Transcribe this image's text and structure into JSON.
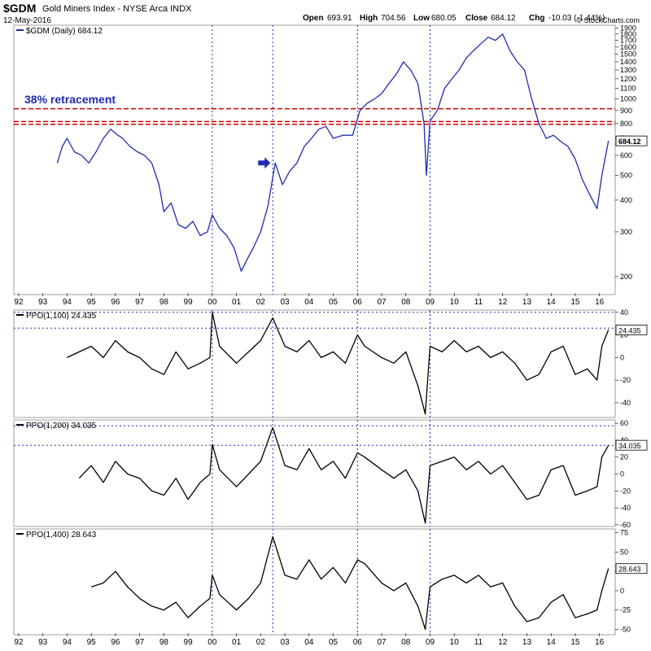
{
  "header": {
    "symbol": "$GDM",
    "name": "Gold Miners Index - NYSE Arca INDX",
    "date": "12-May-2016",
    "open_label": "Open",
    "open": "693.91",
    "high_label": "High",
    "high": "704.56",
    "low_label": "Low",
    "low": "680.05",
    "close_label": "Close",
    "close": "684.12",
    "chg_label": "Chg",
    "chg": "-10.03 (-1.44%)",
    "credit": "© StockCharts.com"
  },
  "colors": {
    "price": "#1f2bb0",
    "ppo": "#000000",
    "retracement": "#cc0000",
    "annotation": "#1f2bb0",
    "guide": "#1f2bb0"
  },
  "x_axis": {
    "labels": [
      "92",
      "93",
      "94",
      "95",
      "96",
      "97",
      "98",
      "99",
      "00",
      "01",
      "02",
      "03",
      "04",
      "05",
      "06",
      "07",
      "08",
      "09",
      "10",
      "11",
      "12",
      "13",
      "14",
      "15",
      "16"
    ],
    "start_year": 1992
  },
  "vertical_guides": [
    2000.0,
    2002.5,
    2006.0,
    2009.0
  ],
  "chart_data": [
    {
      "type": "line",
      "legend": "$GDM (Daily) 684.12",
      "y_scale": "log",
      "ylim": [
        170,
        1950
      ],
      "y_ticks": [
        200,
        300,
        400,
        500,
        600,
        700,
        800,
        900,
        1000,
        1100,
        1200,
        1300,
        1400,
        1500,
        1600,
        1700,
        1800,
        1900
      ],
      "last_value_label": "684.12",
      "annotation_text": "38% retracement",
      "horizontal_lines": [
        915,
        815,
        795
      ],
      "arrow_at": {
        "x": 2002.3,
        "y": 560
      },
      "series": [
        {
          "x": [
            1993.6,
            1993.8,
            1994.0,
            1994.3,
            1994.6,
            1994.9,
            1995.2,
            1995.5,
            1995.8,
            1996.1,
            1996.3,
            1996.6,
            1996.9,
            1997.2,
            1997.5,
            1997.8,
            1998.0,
            1998.3,
            1998.6,
            1998.9,
            1999.2,
            1999.5,
            1999.8,
            2000.0,
            2000.3,
            2000.6,
            2000.9,
            2001.2,
            2001.5,
            2001.7,
            2002.0,
            2002.3,
            2002.6,
            2002.9,
            2003.2,
            2003.5,
            2003.8,
            2004.1,
            2004.4,
            2004.7,
            2005.0,
            2005.4,
            2005.8,
            2006.1,
            2006.4,
            2006.7,
            2007.0,
            2007.3,
            2007.6,
            2007.9,
            2008.2,
            2008.5,
            2008.75,
            2008.85,
            2009.0,
            2009.3,
            2009.6,
            2009.9,
            2010.2,
            2010.5,
            2010.8,
            2011.1,
            2011.4,
            2011.7,
            2012.0,
            2012.3,
            2012.6,
            2012.9,
            2013.2,
            2013.5,
            2013.8,
            2014.1,
            2014.4,
            2014.7,
            2015.0,
            2015.3,
            2015.6,
            2015.9,
            2016.1,
            2016.37
          ],
          "values": [
            560,
            650,
            700,
            620,
            600,
            560,
            620,
            700,
            760,
            720,
            700,
            650,
            620,
            600,
            560,
            460,
            360,
            390,
            320,
            310,
            330,
            290,
            300,
            350,
            310,
            290,
            260,
            210,
            240,
            260,
            300,
            380,
            560,
            460,
            520,
            560,
            650,
            700,
            760,
            780,
            700,
            720,
            720,
            900,
            960,
            1000,
            1050,
            1150,
            1250,
            1400,
            1300,
            1150,
            800,
            500,
            820,
            900,
            1100,
            1200,
            1300,
            1450,
            1550,
            1650,
            1750,
            1700,
            1800,
            1550,
            1400,
            1300,
            1000,
            800,
            700,
            720,
            680,
            650,
            580,
            480,
            420,
            370,
            500,
            684
          ]
        }
      ]
    },
    {
      "type": "line",
      "legend": "PPO(1,100) 24.435",
      "ylim": [
        -53,
        42
      ],
      "y_ticks": [
        40,
        20,
        0,
        -20,
        -40
      ],
      "last_value_label": "24.435",
      "horizontal_lines": [
        40,
        26
      ],
      "series": [
        {
          "x": [
            1994.0,
            1994.5,
            1995.0,
            1995.5,
            1996.0,
            1996.5,
            1997.0,
            1997.5,
            1998.0,
            1998.5,
            1999.0,
            1999.5,
            1999.9,
            2000.0,
            2000.3,
            2001.0,
            2001.5,
            2002.0,
            2002.5,
            2003.0,
            2003.5,
            2004.0,
            2004.5,
            2005.0,
            2005.5,
            2006.0,
            2006.3,
            2007.0,
            2007.5,
            2008.0,
            2008.5,
            2008.8,
            2009.0,
            2009.5,
            2010.0,
            2010.5,
            2011.0,
            2011.5,
            2012.0,
            2012.5,
            2013.0,
            2013.5,
            2014.0,
            2014.5,
            2015.0,
            2015.5,
            2015.9,
            2016.1,
            2016.37
          ],
          "values": [
            0,
            5,
            10,
            0,
            15,
            5,
            0,
            -10,
            -15,
            5,
            -10,
            -5,
            0,
            40,
            10,
            -5,
            5,
            15,
            35,
            10,
            5,
            15,
            0,
            5,
            -5,
            20,
            10,
            0,
            -5,
            5,
            -25,
            -50,
            10,
            5,
            15,
            5,
            10,
            0,
            5,
            -5,
            -20,
            -15,
            5,
            10,
            -15,
            -10,
            -20,
            10,
            24.435
          ]
        }
      ]
    },
    {
      "type": "line",
      "legend": "PPO(1,200) 34.035",
      "ylim": [
        -62,
        64
      ],
      "y_ticks": [
        60,
        40,
        20,
        0,
        -20,
        -40,
        -60
      ],
      "last_value_label": "34.035",
      "horizontal_lines": [
        57,
        34
      ],
      "series": [
        {
          "x": [
            1994.5,
            1995.0,
            1995.5,
            1996.0,
            1996.5,
            1997.0,
            1997.5,
            1998.0,
            1998.5,
            1999.0,
            1999.5,
            1999.9,
            2000.0,
            2000.3,
            2001.0,
            2001.5,
            2002.0,
            2002.5,
            2003.0,
            2003.5,
            2004.0,
            2004.5,
            2005.0,
            2005.5,
            2006.0,
            2006.3,
            2007.0,
            2007.5,
            2008.0,
            2008.5,
            2008.8,
            2009.0,
            2009.5,
            2010.0,
            2010.5,
            2011.0,
            2011.5,
            2012.0,
            2012.5,
            2013.0,
            2013.5,
            2014.0,
            2014.5,
            2015.0,
            2015.5,
            2015.9,
            2016.1,
            2016.37
          ],
          "values": [
            -5,
            10,
            -10,
            15,
            0,
            -5,
            -20,
            -25,
            -5,
            -30,
            -10,
            0,
            35,
            5,
            -15,
            0,
            15,
            55,
            10,
            5,
            30,
            5,
            15,
            -5,
            25,
            20,
            5,
            -5,
            5,
            -20,
            -58,
            10,
            15,
            20,
            5,
            15,
            0,
            10,
            -10,
            -30,
            -25,
            5,
            10,
            -25,
            -20,
            -15,
            20,
            34.035
          ]
        }
      ]
    },
    {
      "type": "line",
      "legend": "PPO(1,400) 28.643",
      "ylim": [
        -57,
        80
      ],
      "y_ticks": [
        75,
        50,
        25,
        0,
        -25,
        -50
      ],
      "last_value_label": "28.643",
      "horizontal_lines": [],
      "series": [
        {
          "x": [
            1995.0,
            1995.5,
            1996.0,
            1996.5,
            1997.0,
            1997.5,
            1998.0,
            1998.5,
            1999.0,
            1999.5,
            1999.9,
            2000.0,
            2000.3,
            2001.0,
            2001.5,
            2002.0,
            2002.5,
            2003.0,
            2003.5,
            2004.0,
            2004.5,
            2005.0,
            2005.5,
            2006.0,
            2006.3,
            2007.0,
            2007.5,
            2008.0,
            2008.5,
            2008.8,
            2009.0,
            2009.5,
            2010.0,
            2010.5,
            2011.0,
            2011.5,
            2012.0,
            2012.5,
            2013.0,
            2013.5,
            2014.0,
            2014.5,
            2015.0,
            2015.5,
            2015.9,
            2016.1,
            2016.37
          ],
          "values": [
            5,
            10,
            25,
            5,
            -10,
            -20,
            -25,
            -15,
            -35,
            -20,
            -10,
            20,
            -5,
            -25,
            -10,
            10,
            70,
            20,
            15,
            40,
            15,
            30,
            10,
            40,
            35,
            10,
            0,
            10,
            -20,
            -50,
            5,
            15,
            20,
            10,
            20,
            5,
            10,
            -20,
            -40,
            -35,
            -15,
            -5,
            -35,
            -30,
            -25,
            0,
            28.643
          ]
        }
      ]
    }
  ]
}
